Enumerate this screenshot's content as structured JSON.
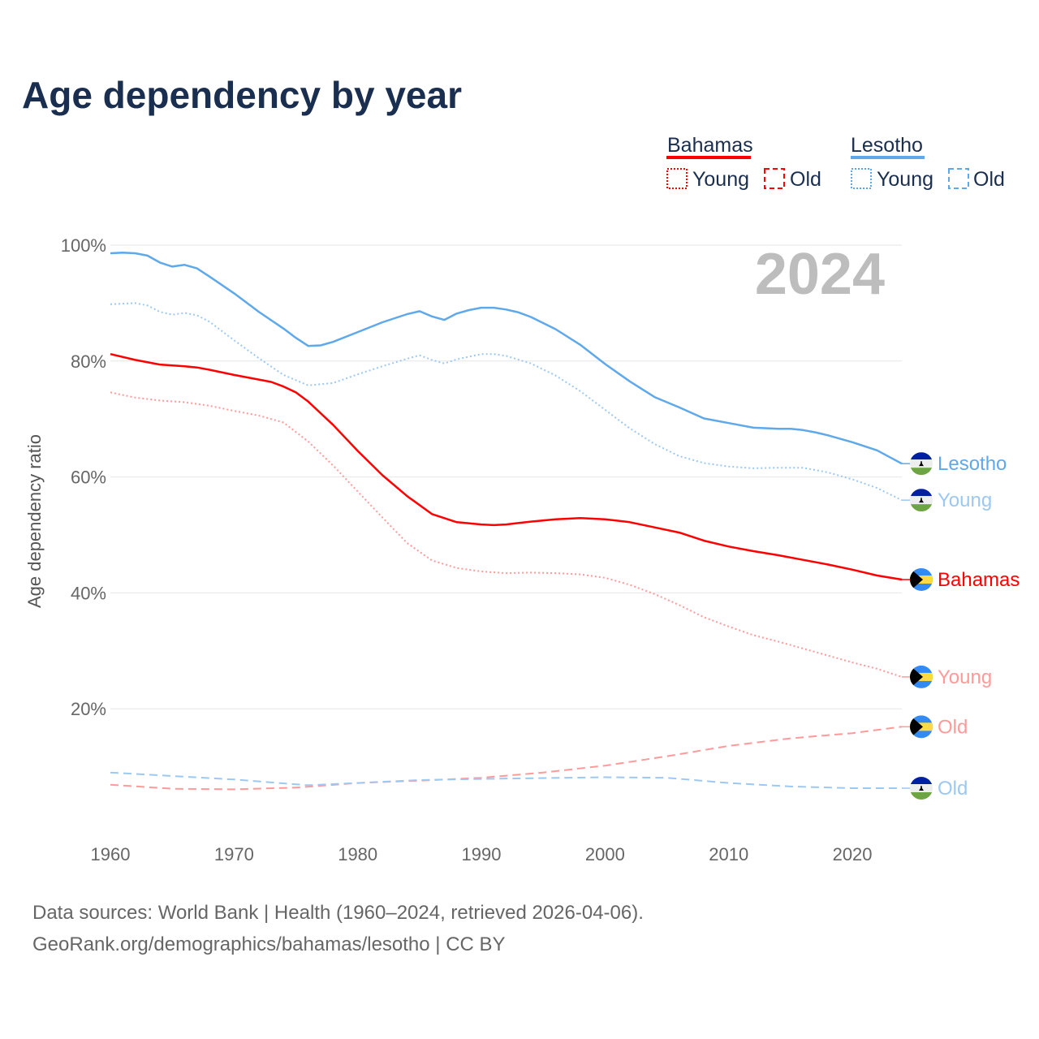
{
  "chart_data": {
    "type": "line",
    "title": "Age dependency by year",
    "xlabel": "",
    "ylabel": "Age dependency ratio",
    "xlim": [
      1960,
      2024
    ],
    "ylim": [
      0,
      100
    ],
    "x_ticks": [
      "1960",
      "1970",
      "1980",
      "1990",
      "2000",
      "2010",
      "2020"
    ],
    "y_ticks": [
      {
        "v": 20,
        "label": "20%"
      },
      {
        "v": 40,
        "label": "40%"
      },
      {
        "v": 60,
        "label": "60%"
      },
      {
        "v": 80,
        "label": "80%"
      },
      {
        "v": 100,
        "label": "100%"
      }
    ],
    "year_watermark": "2024",
    "legend": {
      "placement": "top-right",
      "groups": [
        {
          "country": "Bahamas",
          "color": "#ff0000",
          "young": "Young",
          "old": "Old"
        },
        {
          "country": "Lesotho",
          "color": "#5fa8ea",
          "young": "Young",
          "old": "Old"
        }
      ]
    },
    "series": [
      {
        "name": "Lesotho",
        "end_label": "Lesotho",
        "country": "Lesotho",
        "kind": "total",
        "color": "#5fa8ea",
        "dash": "",
        "flag": "lesotho",
        "points": [
          [
            1960,
            98.6
          ],
          [
            1961,
            98.7
          ],
          [
            1962,
            98.6
          ],
          [
            1963,
            98.2
          ],
          [
            1964,
            97
          ],
          [
            1965,
            96.3
          ],
          [
            1966,
            96.6
          ],
          [
            1967,
            96
          ],
          [
            1968,
            94.6
          ],
          [
            1970,
            91.7
          ],
          [
            1972,
            88.5
          ],
          [
            1974,
            85.6
          ],
          [
            1975,
            84
          ],
          [
            1976,
            82.6
          ],
          [
            1977,
            82.7
          ],
          [
            1978,
            83.3
          ],
          [
            1980,
            85
          ],
          [
            1982,
            86.7
          ],
          [
            1984,
            88.1
          ],
          [
            1985,
            88.6
          ],
          [
            1986,
            87.7
          ],
          [
            1987,
            87.1
          ],
          [
            1988,
            88.2
          ],
          [
            1989,
            88.8
          ],
          [
            1990,
            89.2
          ],
          [
            1991,
            89.2
          ],
          [
            1992,
            88.9
          ],
          [
            1993,
            88.4
          ],
          [
            1994,
            87.6
          ],
          [
            1996,
            85.5
          ],
          [
            1998,
            82.8
          ],
          [
            2000,
            79.5
          ],
          [
            2002,
            76.5
          ],
          [
            2004,
            73.8
          ],
          [
            2006,
            72
          ],
          [
            2008,
            70.1
          ],
          [
            2010,
            69.3
          ],
          [
            2012,
            68.5
          ],
          [
            2014,
            68.3
          ],
          [
            2015,
            68.3
          ],
          [
            2016,
            68.1
          ],
          [
            2017,
            67.7
          ],
          [
            2018,
            67.2
          ],
          [
            2020,
            66
          ],
          [
            2022,
            64.6
          ],
          [
            2024,
            62.3
          ]
        ]
      },
      {
        "name": "Lesotho Young",
        "end_label": "Young",
        "country": "Lesotho",
        "kind": "young",
        "color": "#9cc8f2",
        "dash": "2 3",
        "flag": "lesotho",
        "points": [
          [
            1960,
            89.8
          ],
          [
            1962,
            90
          ],
          [
            1963,
            89.6
          ],
          [
            1964,
            88.5
          ],
          [
            1965,
            88
          ],
          [
            1966,
            88.3
          ],
          [
            1967,
            87.9
          ],
          [
            1968,
            86.8
          ],
          [
            1970,
            83.6
          ],
          [
            1972,
            80.5
          ],
          [
            1974,
            77.6
          ],
          [
            1976,
            75.8
          ],
          [
            1978,
            76.2
          ],
          [
            1980,
            77.7
          ],
          [
            1982,
            79.1
          ],
          [
            1984,
            80.4
          ],
          [
            1985,
            81
          ],
          [
            1986,
            80.2
          ],
          [
            1987,
            79.6
          ],
          [
            1988,
            80.3
          ],
          [
            1990,
            81.2
          ],
          [
            1991,
            81.2
          ],
          [
            1992,
            80.9
          ],
          [
            1994,
            79.6
          ],
          [
            1996,
            77.5
          ],
          [
            1998,
            74.8
          ],
          [
            2000,
            71.6
          ],
          [
            2002,
            68.4
          ],
          [
            2004,
            65.7
          ],
          [
            2006,
            63.6
          ],
          [
            2008,
            62.4
          ],
          [
            2010,
            61.8
          ],
          [
            2012,
            61.5
          ],
          [
            2014,
            61.6
          ],
          [
            2016,
            61.6
          ],
          [
            2018,
            60.8
          ],
          [
            2020,
            59.6
          ],
          [
            2022,
            58.1
          ],
          [
            2024,
            56
          ]
        ]
      },
      {
        "name": "Bahamas",
        "end_label": "Bahamas",
        "country": "Bahamas",
        "kind": "total",
        "color": "#ff0000",
        "dash": "",
        "flag": "bahamas",
        "points": [
          [
            1960,
            81.2
          ],
          [
            1962,
            80.2
          ],
          [
            1964,
            79.4
          ],
          [
            1966,
            79.1
          ],
          [
            1967,
            78.9
          ],
          [
            1968,
            78.5
          ],
          [
            1970,
            77.6
          ],
          [
            1972,
            76.8
          ],
          [
            1973,
            76.4
          ],
          [
            1974,
            75.6
          ],
          [
            1975,
            74.6
          ],
          [
            1976,
            73
          ],
          [
            1978,
            69
          ],
          [
            1980,
            64.5
          ],
          [
            1982,
            60.3
          ],
          [
            1984,
            56.7
          ],
          [
            1986,
            53.6
          ],
          [
            1988,
            52.2
          ],
          [
            1990,
            51.8
          ],
          [
            1991,
            51.7
          ],
          [
            1992,
            51.8
          ],
          [
            1994,
            52.3
          ],
          [
            1996,
            52.7
          ],
          [
            1998,
            52.9
          ],
          [
            2000,
            52.7
          ],
          [
            2002,
            52.2
          ],
          [
            2004,
            51.3
          ],
          [
            2006,
            50.4
          ],
          [
            2008,
            49
          ],
          [
            2010,
            48
          ],
          [
            2012,
            47.2
          ],
          [
            2014,
            46.5
          ],
          [
            2016,
            45.7
          ],
          [
            2018,
            44.9
          ],
          [
            2020,
            44
          ],
          [
            2022,
            43
          ],
          [
            2024,
            42.3
          ]
        ]
      },
      {
        "name": "Bahamas Young",
        "end_label": "Young",
        "country": "Bahamas",
        "kind": "young",
        "color": "#ff9a9a",
        "dash": "2 3",
        "flag": "bahamas",
        "points": [
          [
            1960,
            74.6
          ],
          [
            1962,
            73.7
          ],
          [
            1964,
            73.2
          ],
          [
            1966,
            72.9
          ],
          [
            1968,
            72.3
          ],
          [
            1970,
            71.4
          ],
          [
            1972,
            70.6
          ],
          [
            1974,
            69.4
          ],
          [
            1976,
            66.1
          ],
          [
            1978,
            62
          ],
          [
            1980,
            57.5
          ],
          [
            1982,
            53
          ],
          [
            1984,
            48.6
          ],
          [
            1986,
            45.6
          ],
          [
            1988,
            44.3
          ],
          [
            1990,
            43.7
          ],
          [
            1992,
            43.4
          ],
          [
            1994,
            43.5
          ],
          [
            1996,
            43.4
          ],
          [
            1998,
            43.2
          ],
          [
            2000,
            42.6
          ],
          [
            2002,
            41.4
          ],
          [
            2004,
            39.8
          ],
          [
            2006,
            37.9
          ],
          [
            2008,
            35.8
          ],
          [
            2010,
            34.2
          ],
          [
            2012,
            32.7
          ],
          [
            2014,
            31.6
          ],
          [
            2016,
            30.4
          ],
          [
            2018,
            29.2
          ],
          [
            2020,
            28
          ],
          [
            2022,
            26.9
          ],
          [
            2024,
            25.5
          ]
        ]
      },
      {
        "name": "Bahamas Old",
        "end_label": "Old",
        "country": "Bahamas",
        "kind": "old",
        "color": "#ff9a9a",
        "dash": "10 6",
        "flag": "bahamas",
        "points": [
          [
            1960,
            6.9
          ],
          [
            1965,
            6.2
          ],
          [
            1970,
            6.1
          ],
          [
            1975,
            6.4
          ],
          [
            1980,
            7.2
          ],
          [
            1985,
            7.6
          ],
          [
            1990,
            8.1
          ],
          [
            1995,
            9
          ],
          [
            2000,
            10.2
          ],
          [
            2005,
            11.8
          ],
          [
            2010,
            13.6
          ],
          [
            2015,
            14.9
          ],
          [
            2020,
            15.8
          ],
          [
            2024,
            16.9
          ]
        ]
      },
      {
        "name": "Lesotho Old",
        "end_label": "Old",
        "country": "Lesotho",
        "kind": "old",
        "color": "#9cc8f2",
        "dash": "10 6",
        "flag": "lesotho",
        "points": [
          [
            1960,
            9
          ],
          [
            1970,
            7.8
          ],
          [
            1976,
            6.8
          ],
          [
            1980,
            7.2
          ],
          [
            1985,
            7.7
          ],
          [
            1990,
            7.9
          ],
          [
            2000,
            8.2
          ],
          [
            2005,
            8.1
          ],
          [
            2010,
            7.2
          ],
          [
            2015,
            6.6
          ],
          [
            2020,
            6.3
          ],
          [
            2024,
            6.3
          ]
        ]
      }
    ],
    "source_line1": "Data sources: World Bank | Health (1960–2024, retrieved 2026-04-06).",
    "source_line2": "GeoRank.org/demographics/bahamas/lesotho | CC BY"
  }
}
